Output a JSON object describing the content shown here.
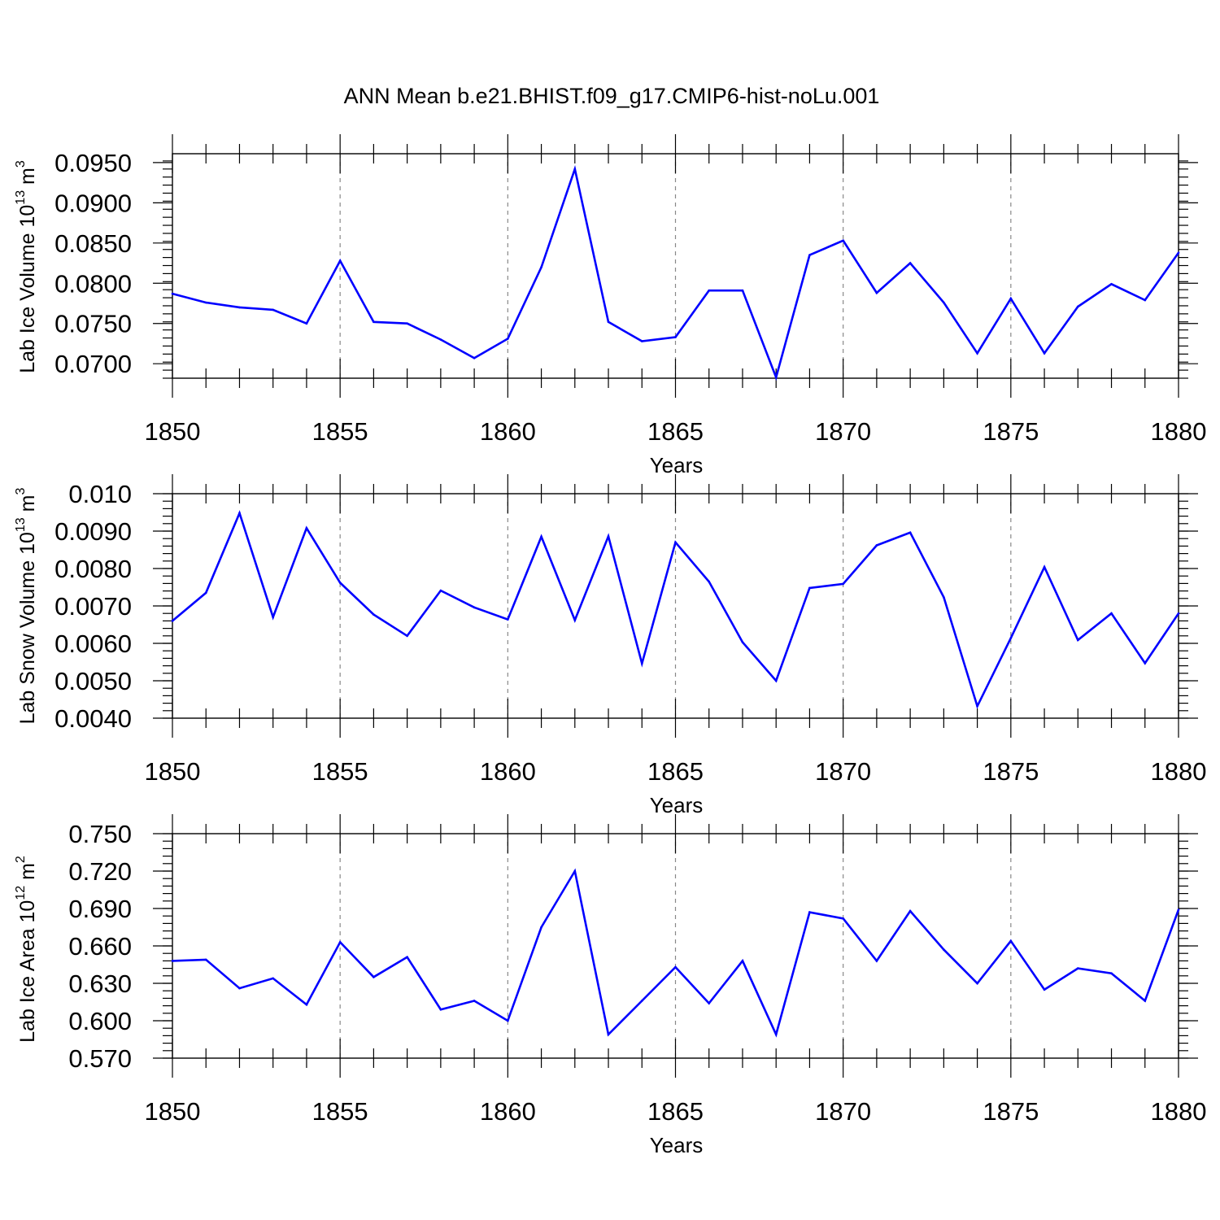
{
  "title": "ANN Mean b.e21.BHIST.f09_g17.CMIP6-hist-noLu.001",
  "colors": {
    "line": "#0000ff",
    "axes": "#000000",
    "grid": "#888888"
  },
  "chart_data": [
    {
      "type": "line",
      "xlabel": "Years",
      "ylabel_text": "Lab Ice Volume 10",
      "ylabel_exp": "13",
      "ylabel_unit": " m",
      "ylabel_unit_exp": "3",
      "xlim": [
        1850,
        1880
      ],
      "ylim": [
        0.0682,
        0.0961
      ],
      "grid": true,
      "x_ticks": [
        1850,
        1855,
        1860,
        1865,
        1870,
        1875,
        1880
      ],
      "x_tick_labels": [
        "1850",
        "1855",
        "1860",
        "1865",
        "1870",
        "1875",
        "1880"
      ],
      "y_ticks": [
        0.07,
        0.075,
        0.08,
        0.085,
        0.09,
        0.095
      ],
      "y_tick_labels": [
        "0.0700",
        "0.0750",
        "0.0800",
        "0.0850",
        "0.0900",
        "0.0950"
      ],
      "y_minor_step": 0.001,
      "x": [
        1850,
        1851,
        1852,
        1853,
        1854,
        1855,
        1856,
        1857,
        1858,
        1859,
        1860,
        1861,
        1862,
        1863,
        1864,
        1865,
        1866,
        1867,
        1868,
        1869,
        1870,
        1871,
        1872,
        1873,
        1874,
        1875,
        1876,
        1877,
        1878,
        1879,
        1880
      ],
      "series": [
        {
          "values": [
            0.0787,
            0.0776,
            0.077,
            0.0767,
            0.075,
            0.0828,
            0.0752,
            0.075,
            0.073,
            0.0707,
            0.0731,
            0.082,
            0.0942,
            0.0752,
            0.0728,
            0.0733,
            0.0791,
            0.0791,
            0.0683,
            0.0835,
            0.0853,
            0.0788,
            0.0825,
            0.0776,
            0.0713,
            0.0781,
            0.0713,
            0.0771,
            0.0799,
            0.0779,
            0.0838
          ]
        }
      ]
    },
    {
      "type": "line",
      "xlabel": "Years",
      "ylabel_text": "Lab Snow Volume 10",
      "ylabel_exp": "13",
      "ylabel_unit": " m",
      "ylabel_unit_exp": "3",
      "xlim": [
        1850,
        1880
      ],
      "ylim": [
        0.004,
        0.01
      ],
      "grid": true,
      "x_ticks": [
        1850,
        1855,
        1860,
        1865,
        1870,
        1875,
        1880
      ],
      "x_tick_labels": [
        "1850",
        "1855",
        "1860",
        "1865",
        "1870",
        "1875",
        "1880"
      ],
      "y_ticks": [
        0.004,
        0.005,
        0.006,
        0.007,
        0.008,
        0.009,
        0.01
      ],
      "y_tick_labels": [
        "0.0040",
        "0.0050",
        "0.0060",
        "0.0070",
        "0.0080",
        "0.0090",
        "0.010"
      ],
      "y_minor_step": 0.0002,
      "x": [
        1850,
        1851,
        1852,
        1853,
        1854,
        1855,
        1856,
        1857,
        1858,
        1859,
        1860,
        1861,
        1862,
        1863,
        1864,
        1865,
        1866,
        1867,
        1868,
        1869,
        1870,
        1871,
        1872,
        1873,
        1874,
        1875,
        1876,
        1877,
        1878,
        1879,
        1880
      ],
      "series": [
        {
          "values": [
            0.0066,
            0.00735,
            0.00948,
            0.0067,
            0.00908,
            0.00762,
            0.00677,
            0.0062,
            0.00741,
            0.00696,
            0.00664,
            0.00885,
            0.00662,
            0.00886,
            0.00546,
            0.0087,
            0.00765,
            0.00603,
            0.005,
            0.00748,
            0.00759,
            0.00862,
            0.00896,
            0.00723,
            0.00432,
            0.00614,
            0.00804,
            0.00609,
            0.0068,
            0.00547,
            0.0068
          ]
        }
      ]
    },
    {
      "type": "line",
      "xlabel": "Years",
      "ylabel_text": "Lab Ice Area 10",
      "ylabel_exp": "12",
      "ylabel_unit": " m",
      "ylabel_unit_exp": "2",
      "xlim": [
        1850,
        1880
      ],
      "ylim": [
        0.57,
        0.75
      ],
      "grid": true,
      "x_ticks": [
        1850,
        1855,
        1860,
        1865,
        1870,
        1875,
        1880
      ],
      "x_tick_labels": [
        "1850",
        "1855",
        "1860",
        "1865",
        "1870",
        "1875",
        "1880"
      ],
      "y_ticks": [
        0.57,
        0.6,
        0.63,
        0.66,
        0.69,
        0.72,
        0.75
      ],
      "y_tick_labels": [
        "0.570",
        "0.600",
        "0.630",
        "0.660",
        "0.690",
        "0.720",
        "0.750"
      ],
      "y_minor_step": 0.006,
      "x": [
        1850,
        1851,
        1852,
        1853,
        1854,
        1855,
        1856,
        1857,
        1858,
        1859,
        1860,
        1861,
        1862,
        1863,
        1864,
        1865,
        1866,
        1867,
        1868,
        1869,
        1870,
        1871,
        1872,
        1873,
        1874,
        1875,
        1876,
        1877,
        1878,
        1879,
        1880
      ],
      "series": [
        {
          "values": [
            0.648,
            0.649,
            0.626,
            0.634,
            0.613,
            0.663,
            0.635,
            0.651,
            0.609,
            0.616,
            0.6,
            0.675,
            0.72,
            0.589,
            0.616,
            0.643,
            0.614,
            0.648,
            0.589,
            0.687,
            0.682,
            0.648,
            0.688,
            0.657,
            0.63,
            0.664,
            0.625,
            0.642,
            0.638,
            0.616,
            0.689
          ]
        }
      ]
    }
  ]
}
